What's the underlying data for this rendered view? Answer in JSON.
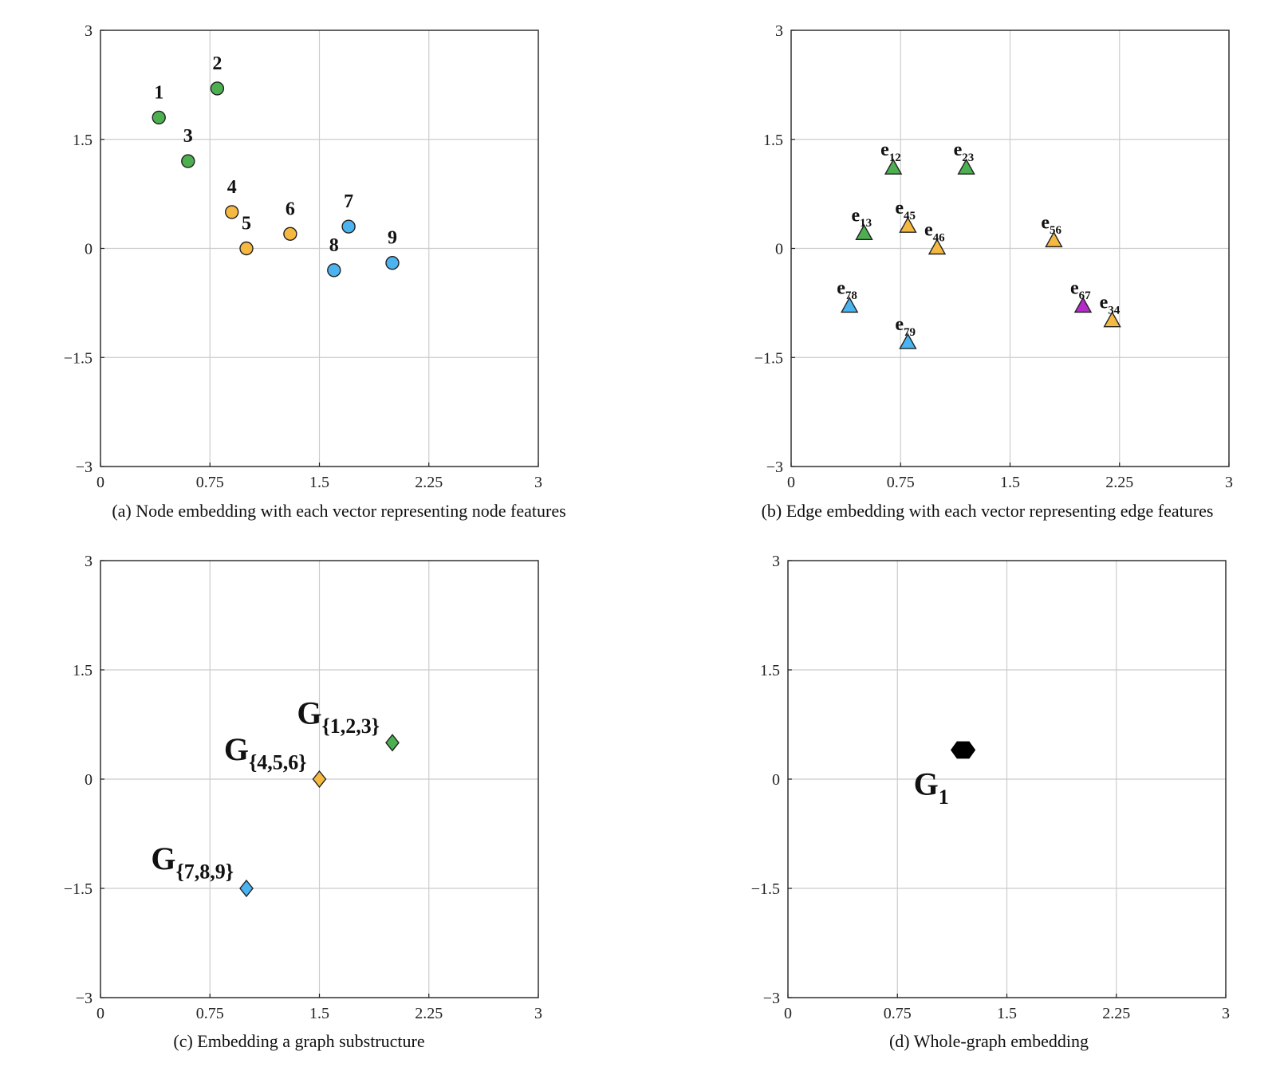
{
  "chart_data": [
    {
      "type": "scatter",
      "caption": "(a) Node embedding with each vector representing node features",
      "xlim": [
        0,
        3
      ],
      "ylim": [
        -3,
        3
      ],
      "xticks": [
        "0",
        "0.75",
        "1.5",
        "2.25",
        "3"
      ],
      "yticks": [
        "−3",
        "−1.5",
        "0",
        "1.5",
        "3"
      ],
      "grid": true,
      "marker": "circle",
      "points": [
        {
          "label": "1",
          "sub": "",
          "x": 0.4,
          "y": 1.8,
          "color": "#4CAF50"
        },
        {
          "label": "2",
          "sub": "",
          "x": 0.8,
          "y": 2.2,
          "color": "#4CAF50"
        },
        {
          "label": "3",
          "sub": "",
          "x": 0.6,
          "y": 1.2,
          "color": "#4CAF50"
        },
        {
          "label": "4",
          "sub": "",
          "x": 0.9,
          "y": 0.5,
          "color": "#F5B942"
        },
        {
          "label": "5",
          "sub": "",
          "x": 1.0,
          "y": 0.0,
          "color": "#F5B942"
        },
        {
          "label": "6",
          "sub": "",
          "x": 1.3,
          "y": 0.2,
          "color": "#F5B942"
        },
        {
          "label": "7",
          "sub": "",
          "x": 1.7,
          "y": 0.3,
          "color": "#4AB3F0"
        },
        {
          "label": "8",
          "sub": "",
          "x": 1.6,
          "y": -0.3,
          "color": "#4AB3F0"
        },
        {
          "label": "9",
          "sub": "",
          "x": 2.0,
          "y": -0.2,
          "color": "#4AB3F0"
        }
      ]
    },
    {
      "type": "scatter",
      "caption": "(b) Edge embedding with each vector representing edge features",
      "xlim": [
        0,
        3
      ],
      "ylim": [
        -3,
        3
      ],
      "xticks": [
        "0",
        "0.75",
        "1.5",
        "2.25",
        "3"
      ],
      "yticks": [
        "−3",
        "−1.5",
        "0",
        "1.5",
        "3"
      ],
      "grid": true,
      "marker": "triangle",
      "points": [
        {
          "label": "e",
          "sub": "12",
          "x": 0.7,
          "y": 1.1,
          "color": "#4CAF50"
        },
        {
          "label": "e",
          "sub": "23",
          "x": 1.2,
          "y": 1.1,
          "color": "#4CAF50"
        },
        {
          "label": "e",
          "sub": "13",
          "x": 0.5,
          "y": 0.2,
          "color": "#4CAF50"
        },
        {
          "label": "e",
          "sub": "45",
          "x": 0.8,
          "y": 0.3,
          "color": "#F5B942"
        },
        {
          "label": "e",
          "sub": "46",
          "x": 1.0,
          "y": 0.0,
          "color": "#F5B942"
        },
        {
          "label": "e",
          "sub": "56",
          "x": 1.8,
          "y": 0.1,
          "color": "#F5B942"
        },
        {
          "label": "e",
          "sub": "78",
          "x": 0.4,
          "y": -0.8,
          "color": "#4AB3F0"
        },
        {
          "label": "e",
          "sub": "79",
          "x": 0.8,
          "y": -1.3,
          "color": "#4AB3F0"
        },
        {
          "label": "e",
          "sub": "67",
          "x": 2.0,
          "y": -0.8,
          "color": "#B52BC9"
        },
        {
          "label": "e",
          "sub": "34",
          "x": 2.2,
          "y": -1.0,
          "color": "#F5B942"
        }
      ]
    },
    {
      "type": "scatter",
      "caption": "(c) Embedding a graph substructure",
      "xlim": [
        0,
        3
      ],
      "ylim": [
        -3,
        3
      ],
      "xticks": [
        "0",
        "0.75",
        "1.5",
        "2.25",
        "3"
      ],
      "yticks": [
        "−3",
        "−1.5",
        "0",
        "1.5",
        "3"
      ],
      "grid": true,
      "marker": "diamond",
      "points": [
        {
          "label": "G",
          "sub": "{1,2,3}",
          "x": 2.0,
          "y": 0.5,
          "color": "#4CAF50"
        },
        {
          "label": "G",
          "sub": "{4,5,6}",
          "x": 1.5,
          "y": 0.0,
          "color": "#F5B942"
        },
        {
          "label": "G",
          "sub": "{7,8,9}",
          "x": 1.0,
          "y": -1.5,
          "color": "#4AB3F0"
        }
      ]
    },
    {
      "type": "scatter",
      "caption": "(d) Whole-graph embedding",
      "xlim": [
        0,
        3
      ],
      "ylim": [
        -3,
        3
      ],
      "xticks": [
        "0",
        "0.75",
        "1.5",
        "2.25",
        "3"
      ],
      "yticks": [
        "−3",
        "−1.5",
        "0",
        "1.5",
        "3"
      ],
      "grid": true,
      "marker": "hexagon",
      "points": [
        {
          "label": "G",
          "sub": "1",
          "x": 1.2,
          "y": 0.4,
          "color": "#000000"
        }
      ]
    }
  ]
}
